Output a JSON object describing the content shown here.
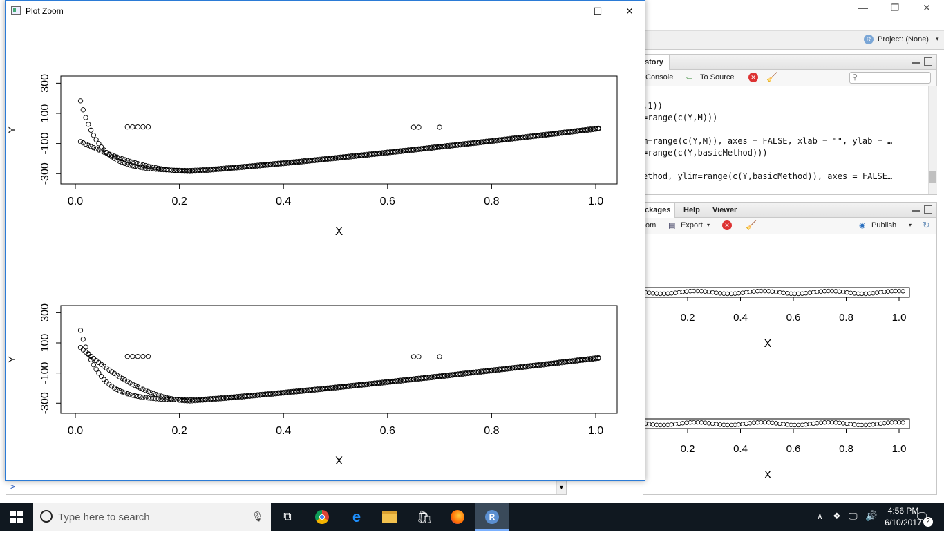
{
  "rstudio": {
    "project_label": "Project: (None)",
    "history_tab": "story",
    "console_btn": "Console",
    "to_source_btn": "To Source",
    "code_lines": [
      ",1))",
      "=range(c(Y,M)))",
      "",
      "m=range(c(Y,M)), axes = FALSE, xlab = \"\", ylab = …",
      "=range(c(Y,basicMethod)))",
      "",
      "ethod, ylim=range(c(Y,basicMethod)), axes = FALSE…"
    ],
    "lower_tabs": [
      "ckages",
      "Help",
      "Viewer"
    ],
    "zoom_frag": "om",
    "export_btn": "Export",
    "publish_btn": "Publish",
    "bg_x_ticks": [
      "0.2",
      "0.4",
      "0.6",
      "0.8",
      "1.0"
    ],
    "bg_xlabel": "X",
    "console_prompt": ">"
  },
  "window": {
    "title": "Plot Zoom",
    "minimize": "—",
    "maximize": "☐",
    "close": "✕"
  },
  "chart_data": [
    {
      "type": "scatter",
      "xlabel": "X",
      "ylabel": "Y",
      "xlim": [
        0,
        1
      ],
      "ylim": [
        -340,
        320
      ],
      "x_ticks": [
        "0.0",
        "0.2",
        "0.4",
        "0.6",
        "0.8",
        "1.0"
      ],
      "y_ticks": [
        "-300",
        "-100",
        "100",
        "300"
      ],
      "series": [
        {
          "desc": "Y (steep curve)",
          "kind": "steep",
          "a": 0
        },
        {
          "desc": "M (smooth curve)",
          "kind": "smooth",
          "start": -70
        },
        {
          "desc": "outliers",
          "points": [
            [
              0.1,
              10
            ],
            [
              0.11,
              10
            ],
            [
              0.12,
              10
            ],
            [
              0.13,
              10
            ],
            [
              0.14,
              10
            ],
            [
              0.65,
              8
            ],
            [
              0.66,
              8
            ],
            [
              0.7,
              8
            ]
          ]
        }
      ]
    },
    {
      "type": "scatter",
      "xlabel": "X",
      "ylabel": "Y",
      "xlim": [
        0,
        1
      ],
      "ylim": [
        -340,
        320
      ],
      "x_ticks": [
        "0.0",
        "0.2",
        "0.4",
        "0.6",
        "0.8",
        "1.0"
      ],
      "y_ticks": [
        "-300",
        "-100",
        "100",
        "300"
      ],
      "series": [
        {
          "desc": "Y (steep curve)",
          "kind": "steep",
          "a": 0
        },
        {
          "desc": "basicMethod",
          "kind": "smooth",
          "start": 100
        },
        {
          "desc": "outliers",
          "points": [
            [
              0.1,
              10
            ],
            [
              0.11,
              10
            ],
            [
              0.12,
              10
            ],
            [
              0.13,
              10
            ],
            [
              0.14,
              10
            ],
            [
              0.65,
              8
            ],
            [
              0.66,
              8
            ],
            [
              0.7,
              8
            ]
          ]
        }
      ]
    }
  ],
  "taskbar": {
    "search_placeholder": "Type here to search",
    "time": "4:56 PM",
    "date": "6/10/2017",
    "notif_count": "2"
  }
}
